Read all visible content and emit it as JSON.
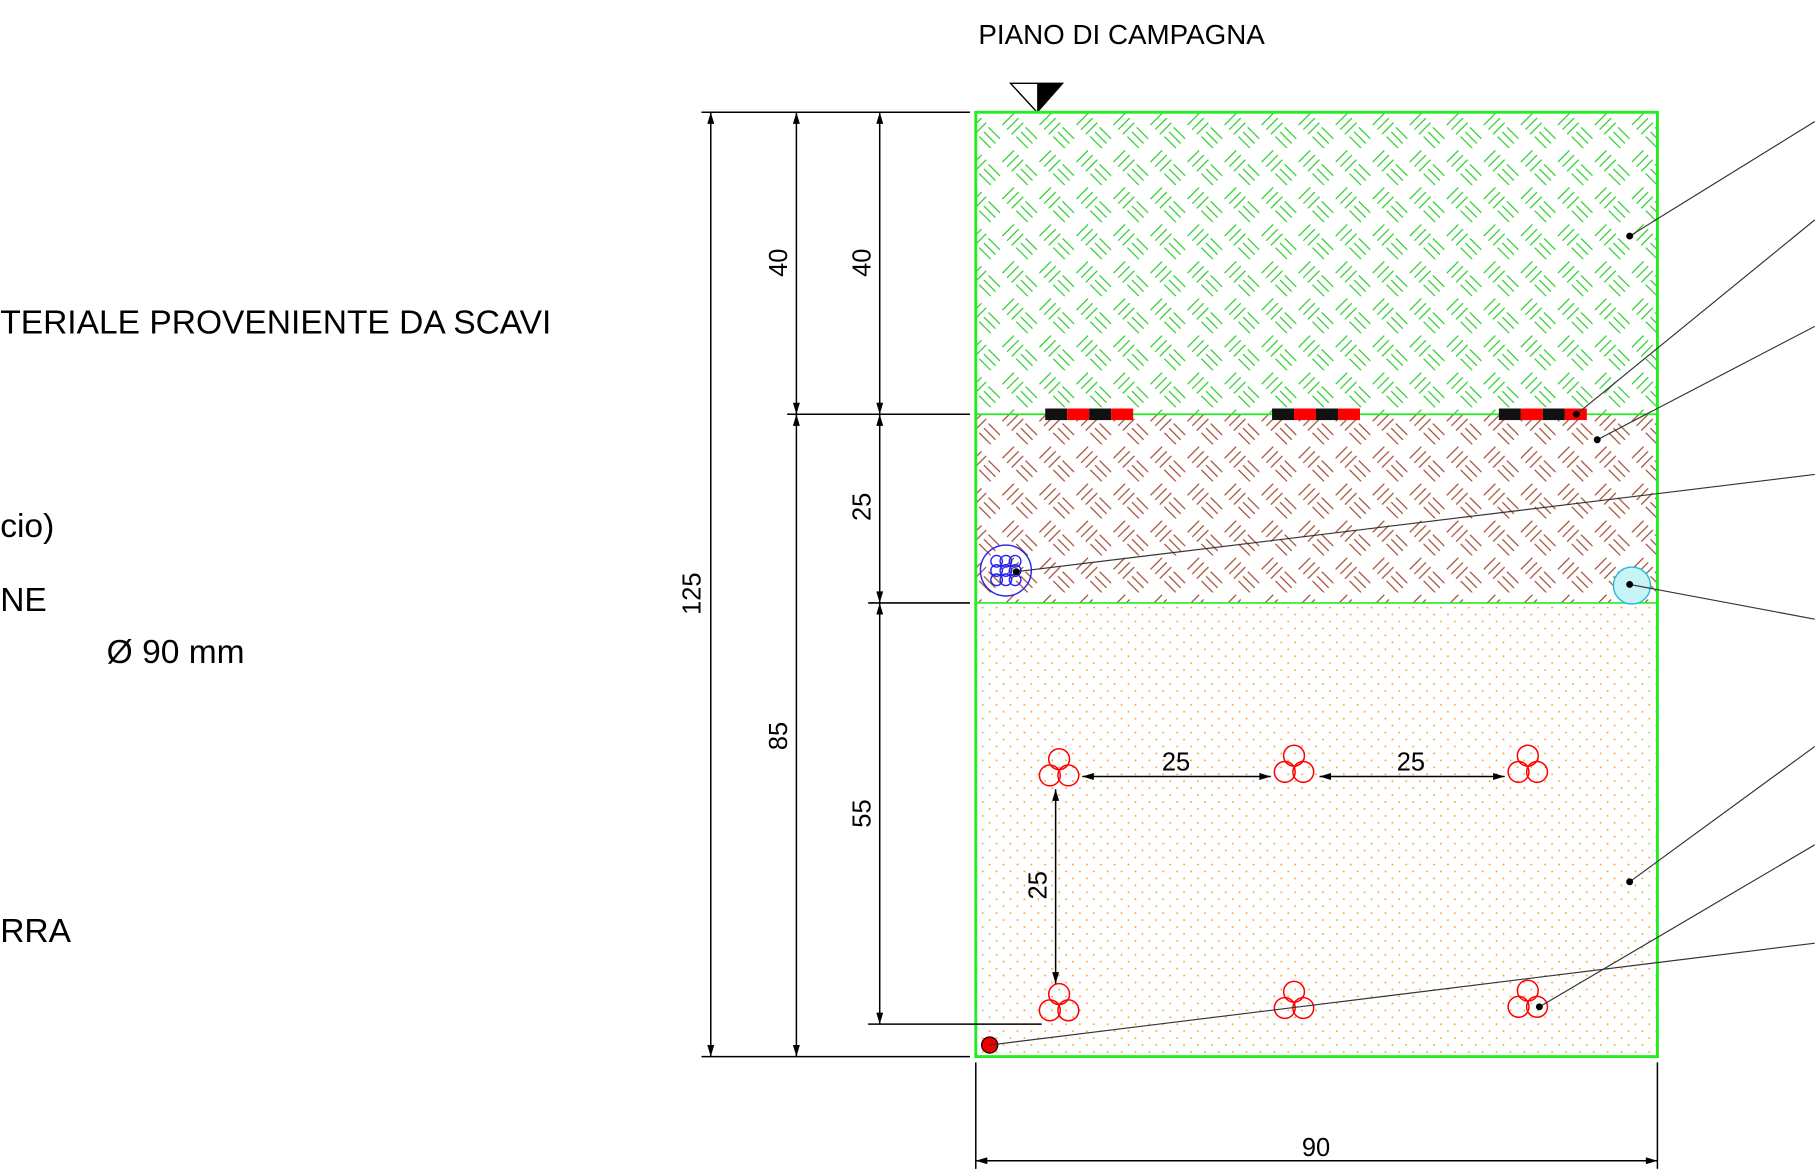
{
  "header": {
    "title": "PIANO DI CAMPAGNA"
  },
  "legend": {
    "items": [
      "TERIALE PROVENIENTE DA SCAVI",
      "cio)",
      "NE",
      "Ø 90 mm",
      "RRA"
    ]
  },
  "dimensions": {
    "total_depth": 125,
    "top_layer_outer": 40,
    "lower_depth": 85,
    "top_layer_inner": 40,
    "middle_layer": 25,
    "cable_depth": 55,
    "cable_spacing_1": 25,
    "cable_spacing_2": 25,
    "cable_vertical": 25,
    "width": 90
  }
}
